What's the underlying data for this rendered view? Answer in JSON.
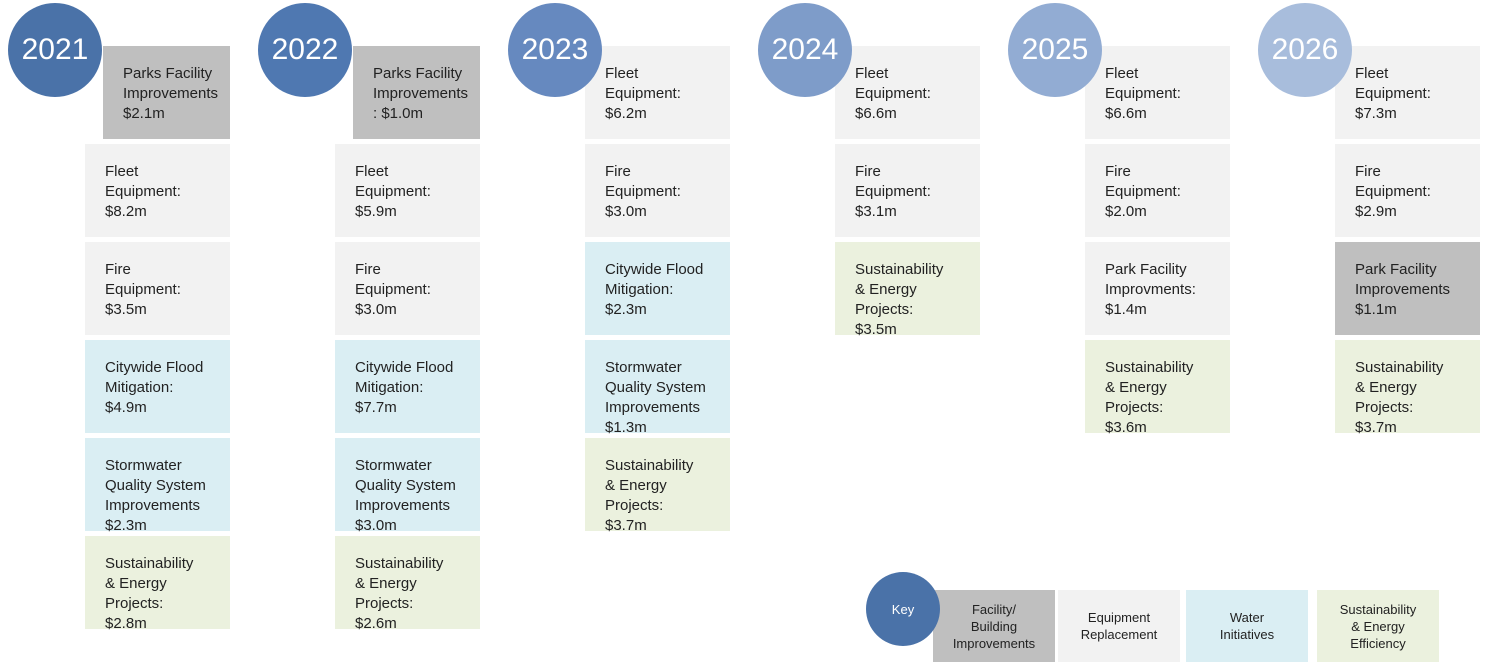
{
  "columns": [
    {
      "year": "2021",
      "circle_color": "#4a72a8",
      "items": [
        {
          "lines": [
            "Parks Facility",
            "Improvements",
            "$2.1m"
          ],
          "color": "#bfbfbf"
        },
        {
          "lines": [
            "Fleet",
            "Equipment:",
            "$8.2m"
          ],
          "color": "#f2f2f2"
        },
        {
          "lines": [
            "Fire",
            "Equipment:",
            "$3.5m"
          ],
          "color": "#f2f2f2"
        },
        {
          "lines": [
            "Citywide Flood",
            "Mitigation:",
            "$4.9m"
          ],
          "color": "#daeef3"
        },
        {
          "lines": [
            "Stormwater",
            "Quality System",
            "Improvements",
            "$2.3m"
          ],
          "color": "#daeef3"
        },
        {
          "lines": [
            "Sustainability",
            "& Energy",
            "Projects:",
            "$2.8m"
          ],
          "color": "#ebf1de"
        }
      ]
    },
    {
      "year": "2022",
      "circle_color": "#4f78b1",
      "items": [
        {
          "lines": [
            "Parks Facility",
            "Improvements",
            ": $1.0m"
          ],
          "color": "#bfbfbf"
        },
        {
          "lines": [
            "Fleet",
            "Equipment:",
            "$5.9m"
          ],
          "color": "#f2f2f2"
        },
        {
          "lines": [
            "Fire",
            "Equipment:",
            "$3.0m"
          ],
          "color": "#f2f2f2"
        },
        {
          "lines": [
            "Citywide Flood",
            "Mitigation:",
            "$7.7m"
          ],
          "color": "#daeef3"
        },
        {
          "lines": [
            "Stormwater",
            "Quality System",
            "Improvements",
            "$3.0m"
          ],
          "color": "#daeef3"
        },
        {
          "lines": [
            "Sustainability",
            "& Energy",
            "Projects:",
            "$2.6m"
          ],
          "color": "#ebf1de"
        }
      ]
    },
    {
      "year": "2023",
      "circle_color": "#6689bf",
      "items": [
        {
          "lines": [
            "Fleet",
            "Equipment:",
            "$6.2m"
          ],
          "color": "#f2f2f2"
        },
        {
          "lines": [
            "Fire",
            "Equipment:",
            "$3.0m"
          ],
          "color": "#f2f2f2"
        },
        {
          "lines": [
            "Citywide Flood",
            "Mitigation:",
            "$2.3m"
          ],
          "color": "#daeef3"
        },
        {
          "lines": [
            "Stormwater",
            "Quality System",
            "Improvements",
            "$1.3m"
          ],
          "color": "#daeef3"
        },
        {
          "lines": [
            "Sustainability",
            "& Energy",
            "Projects:",
            "$3.7m"
          ],
          "color": "#ebf1de"
        }
      ]
    },
    {
      "year": "2024",
      "circle_color": "#7e9cc9",
      "items": [
        {
          "lines": [
            "Fleet",
            "Equipment:",
            "$6.6m"
          ],
          "color": "#f2f2f2"
        },
        {
          "lines": [
            "Fire",
            "Equipment:",
            "$3.1m"
          ],
          "color": "#f2f2f2"
        },
        {
          "lines": [
            "Sustainability",
            "& Energy",
            "Projects:",
            "$3.5m"
          ],
          "color": "#ebf1de"
        }
      ]
    },
    {
      "year": "2025",
      "circle_color": "#92acd3",
      "items": [
        {
          "lines": [
            "Fleet",
            "Equipment:",
            "$6.6m"
          ],
          "color": "#f2f2f2"
        },
        {
          "lines": [
            "Fire",
            "Equipment:",
            "$2.0m"
          ],
          "color": "#f2f2f2"
        },
        {
          "lines": [
            "Park Facility",
            "Improvments:",
            "$1.4m"
          ],
          "color": "#f2f2f2"
        },
        {
          "lines": [
            "Sustainability",
            "& Energy",
            "Projects:",
            "$3.6m"
          ],
          "color": "#ebf1de"
        }
      ]
    },
    {
      "year": "2026",
      "circle_color": "#a8bddc",
      "items": [
        {
          "lines": [
            "Fleet",
            "Equipment:",
            "$7.3m"
          ],
          "color": "#f2f2f2"
        },
        {
          "lines": [
            "Fire",
            "Equipment:",
            "$2.9m"
          ],
          "color": "#f2f2f2"
        },
        {
          "lines": [
            "Park Facility",
            "Improvements",
            "$1.1m"
          ],
          "color": "#bfbfbf"
        },
        {
          "lines": [
            "Sustainability",
            "& Energy",
            "Projects:",
            "$3.7m"
          ],
          "color": "#ebf1de"
        }
      ]
    }
  ],
  "key": {
    "title": "Key",
    "circle_color": "#4a72a8",
    "items": [
      {
        "lines": [
          "Facility/",
          "Building",
          "Improvements"
        ],
        "color": "#bfbfbf"
      },
      {
        "lines": [
          "Equipment",
          "Replacement"
        ],
        "color": "#f2f2f2"
      },
      {
        "lines": [
          "Water",
          "Initiatives"
        ],
        "color": "#daeef3"
      },
      {
        "lines": [
          "Sustainability",
          "& Energy",
          "Efficiency"
        ],
        "color": "#ebf1de"
      }
    ]
  }
}
